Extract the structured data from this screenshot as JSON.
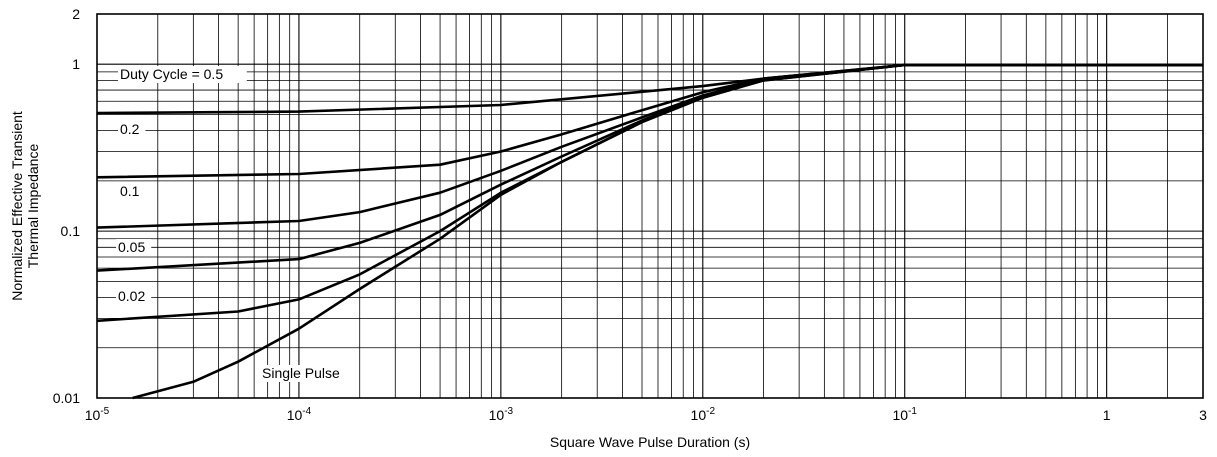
{
  "chart_data": {
    "type": "line",
    "title": "",
    "xlabel": "Square Wave Pulse Duration (s)",
    "ylabel_lines": [
      "Normalized Effective Transient",
      "Thermal Impedance"
    ],
    "x_scale": "log",
    "y_scale": "log",
    "xlim": [
      1e-05,
      3
    ],
    "ylim": [
      0.01,
      2
    ],
    "x_ticks": [
      {
        "value": 1e-05,
        "base": "10",
        "exp": "-5"
      },
      {
        "value": 0.0001,
        "base": "10",
        "exp": "-4"
      },
      {
        "value": 0.001,
        "base": "10",
        "exp": "-3"
      },
      {
        "value": 0.01,
        "base": "10",
        "exp": "-2"
      },
      {
        "value": 0.1,
        "base": "10",
        "exp": "-1"
      },
      {
        "value": 1,
        "base": "1",
        "exp": ""
      },
      {
        "value": 3,
        "base": "3",
        "exp": ""
      }
    ],
    "y_ticks": [
      {
        "value": 2,
        "label": "2"
      },
      {
        "value": 1,
        "label": "1"
      },
      {
        "value": 0.1,
        "label": "0.1"
      },
      {
        "value": 0.01,
        "label": "0.01"
      }
    ],
    "grid": true,
    "series_labels": [
      "Duty Cycle = 0.5",
      "0.2",
      "0.1",
      "0.05",
      "0.02",
      "Single Pulse"
    ],
    "series": [
      {
        "name": "Duty Cycle = 0.5",
        "x": [
          1e-05,
          0.0001,
          0.001,
          0.01,
          0.02,
          0.1,
          3
        ],
        "y": [
          0.51,
          0.52,
          0.57,
          0.74,
          0.82,
          0.99,
          0.99
        ]
      },
      {
        "name": "0.2",
        "x": [
          1e-05,
          0.0001,
          0.0005,
          0.001,
          0.002,
          0.005,
          0.01,
          0.02,
          0.1,
          3
        ],
        "y": [
          0.21,
          0.22,
          0.25,
          0.3,
          0.38,
          0.53,
          0.68,
          0.82,
          0.99,
          0.99
        ]
      },
      {
        "name": "0.1",
        "x": [
          1e-05,
          0.0001,
          0.0002,
          0.0005,
          0.001,
          0.002,
          0.005,
          0.01,
          0.02,
          0.1,
          3
        ],
        "y": [
          0.105,
          0.115,
          0.13,
          0.17,
          0.23,
          0.32,
          0.48,
          0.65,
          0.81,
          0.99,
          0.99
        ]
      },
      {
        "name": "0.05",
        "x": [
          1e-05,
          0.0001,
          0.0002,
          0.0005,
          0.001,
          0.002,
          0.005,
          0.01,
          0.02,
          0.1,
          3
        ],
        "y": [
          0.058,
          0.068,
          0.085,
          0.125,
          0.19,
          0.28,
          0.46,
          0.64,
          0.81,
          0.99,
          0.99
        ]
      },
      {
        "name": "0.02",
        "x": [
          1e-05,
          5e-05,
          0.0001,
          0.0002,
          0.0005,
          0.001,
          0.002,
          0.005,
          0.01,
          0.02,
          0.1,
          3
        ],
        "y": [
          0.029,
          0.033,
          0.039,
          0.055,
          0.1,
          0.17,
          0.26,
          0.45,
          0.63,
          0.8,
          0.99,
          0.99
        ]
      },
      {
        "name": "Single Pulse",
        "x": [
          1.5e-05,
          3e-05,
          5e-05,
          0.0001,
          0.0002,
          0.0005,
          0.001,
          0.002,
          0.005,
          0.01,
          0.02,
          0.1,
          3
        ],
        "y": [
          0.01,
          0.0125,
          0.0165,
          0.026,
          0.045,
          0.09,
          0.165,
          0.26,
          0.45,
          0.63,
          0.8,
          0.99,
          0.99
        ]
      }
    ]
  }
}
